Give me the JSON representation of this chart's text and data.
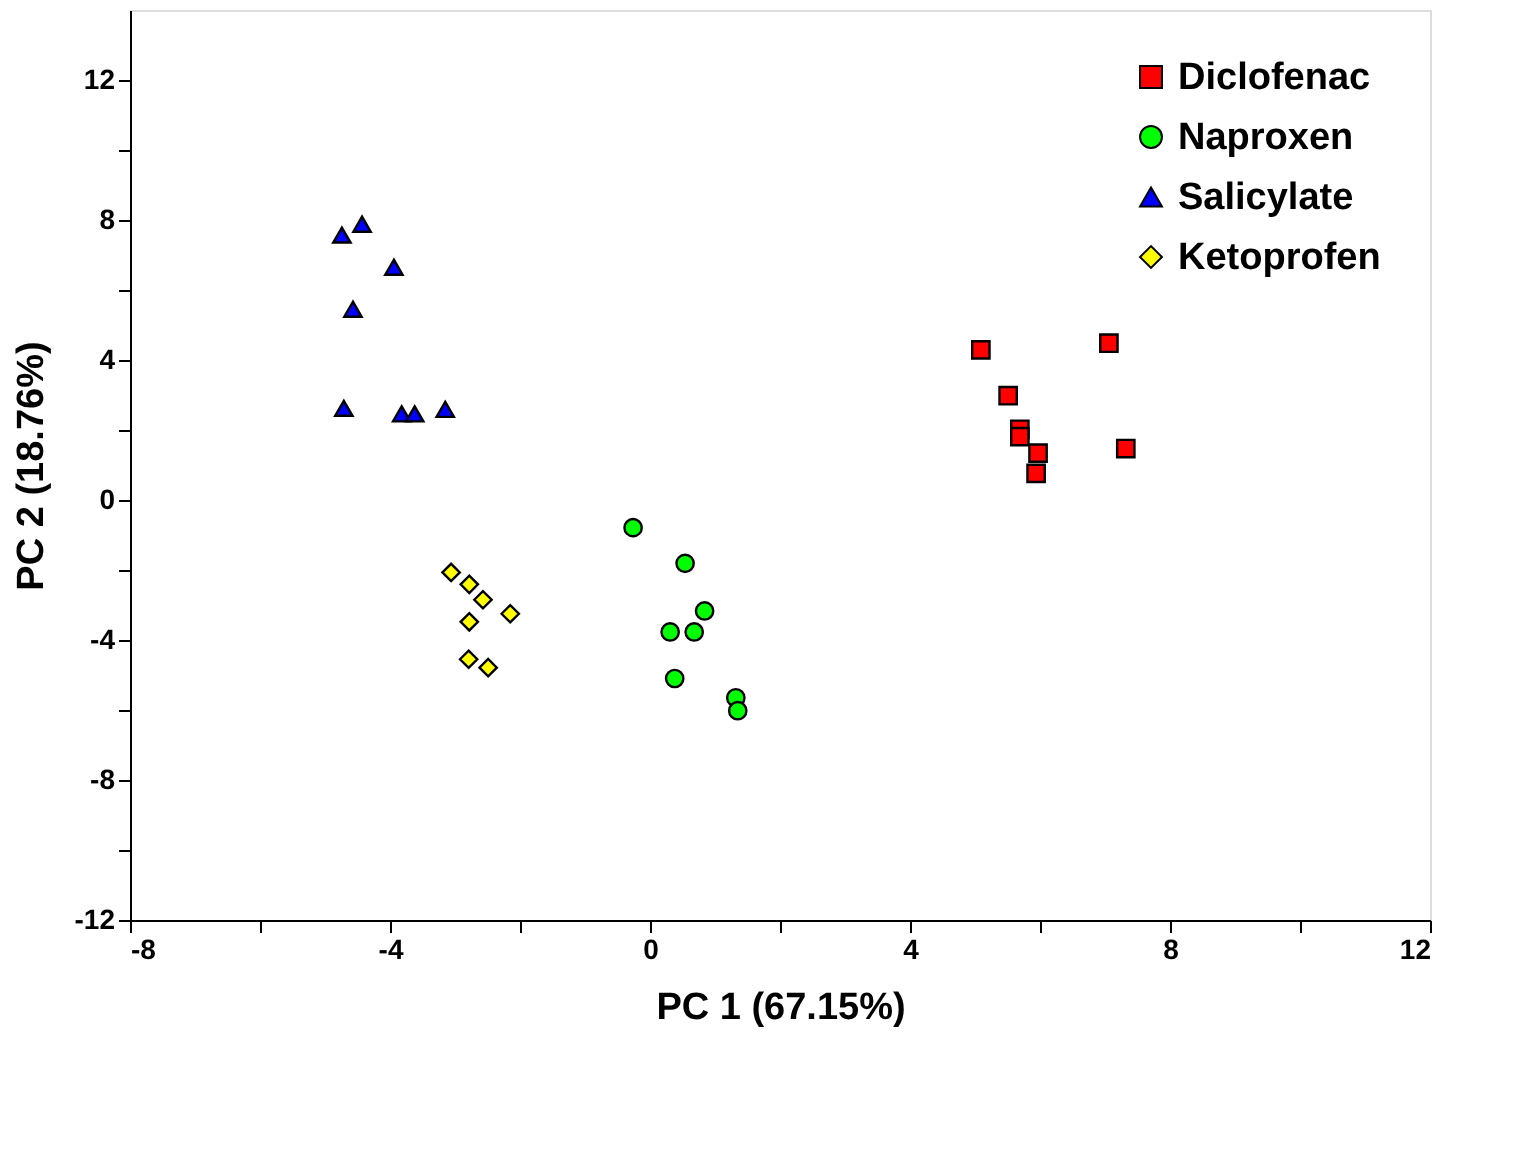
{
  "chart_data": {
    "type": "scatter",
    "xlabel": "PC 1 (67.15%)",
    "ylabel": "PC 2 (18.76%)",
    "xlim": [
      -8,
      12
    ],
    "ylim": [
      -12,
      14
    ],
    "xticks": [
      -8,
      {
        "value": -6,
        "label": null
      },
      -4,
      {
        "value": -2,
        "label": null
      },
      0,
      {
        "value": 2,
        "label": null
      },
      4,
      {
        "value": 6,
        "label": null
      },
      8,
      {
        "value": 10,
        "label": null
      },
      12
    ],
    "yticks": [
      -12,
      {
        "value": -10,
        "label": null
      },
      -8,
      {
        "value": -6,
        "label": null
      },
      -4,
      {
        "value": -2,
        "label": null
      },
      0,
      {
        "value": 2,
        "label": null
      },
      4,
      {
        "value": 6,
        "label": null
      },
      8,
      {
        "value": 10,
        "label": null
      },
      12
    ],
    "grid": false,
    "legend": "top right",
    "series": [
      {
        "name": "Diclofenac",
        "color": "#ff0000",
        "marker": "square",
        "x": [
          5.09,
          7.06,
          5.51,
          5.69,
          5.69,
          5.97,
          5.94,
          7.32
        ],
        "values": [
          4.29,
          4.48,
          2.98,
          2.02,
          1.81,
          1.34,
          0.76,
          1.47
        ]
      },
      {
        "name": "Naproxen",
        "color": "#00ff00",
        "marker": "circle",
        "x": [
          -0.26,
          0.54,
          0.84,
          0.31,
          0.68,
          0.38,
          1.32,
          1.35
        ],
        "values": [
          -0.79,
          -1.81,
          -3.17,
          -3.77,
          -3.77,
          -5.1,
          -5.65,
          -6.02
        ]
      },
      {
        "name": "Salicylate",
        "color": "#0000ff",
        "marker": "triangle",
        "x": [
          -4.74,
          -4.43,
          -3.94,
          -4.57,
          -4.71,
          -3.82,
          -3.62,
          -3.15
        ],
        "values": [
          7.57,
          7.88,
          6.65,
          5.45,
          2.62,
          2.46,
          2.46,
          2.59
        ]
      },
      {
        "name": "Ketoprofen",
        "color": "#ffff00",
        "marker": "diamond",
        "x": [
          -3.06,
          -2.78,
          -2.57,
          -2.15,
          -2.78,
          -2.79,
          -2.49
        ],
        "values": [
          -2.07,
          -2.41,
          -2.85,
          -3.25,
          -3.48,
          -4.55,
          -4.79
        ]
      }
    ]
  }
}
